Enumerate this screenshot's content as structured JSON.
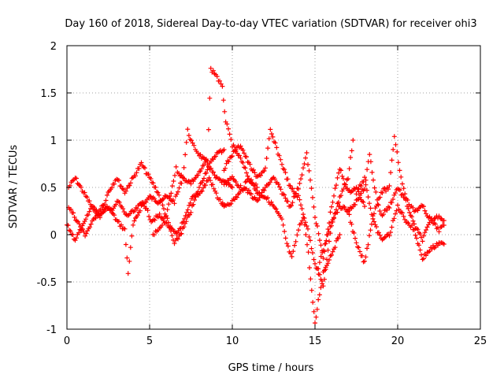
{
  "chart_data": {
    "type": "scatter",
    "title": "Day 160 of 2018, Sidereal Day-to-day VTEC variation (SDTVAR) for receiver ohi3",
    "xlabel": "GPS time / hours",
    "ylabel": "SDTVAR / TECUs",
    "xlim": [
      0,
      25
    ],
    "ylim": [
      -1,
      2
    ],
    "xticks": [
      0,
      5,
      10,
      15,
      20,
      25
    ],
    "xtick_labels": [
      "0",
      "5",
      "10",
      "15",
      "20",
      "25"
    ],
    "yticks": [
      -1,
      -0.5,
      0,
      0.5,
      1,
      1.5,
      2
    ],
    "ytick_labels": [
      "-1",
      "-0.5",
      "0",
      "0.5",
      "1",
      "1.5",
      "2"
    ],
    "grid": true,
    "marker": "+",
    "series": [
      {
        "name": "SDTVAR",
        "color": "#ff0000",
        "tracks": [
          {
            "x": [
              0.1,
              0.5,
              1.0,
              1.5,
              2.0,
              2.5,
              3.0,
              3.5,
              3.7,
              4.0,
              4.5,
              5.0,
              5.5,
              6.0,
              6.5,
              7.0,
              7.3,
              7.6,
              8.0,
              8.5,
              9.0,
              9.5,
              10.0
            ],
            "y": [
              0.5,
              0.6,
              0.45,
              0.3,
              0.2,
              0.3,
              0.15,
              0.05,
              -0.4,
              0.1,
              0.3,
              0.4,
              0.35,
              0.4,
              0.35,
              0.6,
              1.1,
              0.95,
              0.85,
              0.75,
              0.6,
              0.55,
              0.5
            ]
          },
          {
            "x": [
              0.0,
              0.5,
              1.0,
              1.5,
              2.0,
              2.5,
              3.0,
              3.5,
              4.0,
              4.5,
              5.0,
              5.5,
              6.0,
              6.5,
              7.0,
              7.5,
              8.0,
              8.5,
              9.0,
              9.5
            ],
            "y": [
              0.1,
              -0.05,
              0.1,
              0.3,
              0.2,
              0.45,
              0.6,
              0.45,
              0.6,
              0.75,
              0.6,
              0.45,
              0.2,
              -0.1,
              0.05,
              0.25,
              0.5,
              0.7,
              0.85,
              0.9
            ]
          },
          {
            "x": [
              0.1,
              0.6,
              1.1,
              1.6,
              2.1,
              2.6,
              3.1,
              3.6,
              4.1,
              4.6,
              5.1,
              5.6,
              6.1,
              6.6,
              7.1,
              7.6,
              8.1,
              8.6,
              9.1,
              9.5
            ],
            "y": [
              0.3,
              0.15,
              0.0,
              0.15,
              0.3,
              0.25,
              0.35,
              0.2,
              0.25,
              0.35,
              0.15,
              0.2,
              0.1,
              0.0,
              0.15,
              0.4,
              0.45,
              0.6,
              0.4,
              0.3
            ]
          },
          {
            "x": [
              5.2,
              5.6,
              6.0,
              6.3,
              6.6,
              7.0,
              7.5,
              8.0,
              8.5,
              8.7,
              9.0,
              9.4,
              9.6,
              10.0,
              10.5,
              11.0,
              11.5
            ],
            "y": [
              0.0,
              0.05,
              0.2,
              0.45,
              0.7,
              0.6,
              0.55,
              0.65,
              0.8,
              1.75,
              1.7,
              1.55,
              1.2,
              0.95,
              0.8,
              0.6,
              0.5
            ]
          },
          {
            "x": [
              9.4,
              10.0,
              10.5,
              11.0,
              11.5,
              12.0,
              12.5,
              13.0,
              13.3,
              13.6,
              14.0,
              14.3,
              14.6,
              14.8,
              15.0,
              15.2,
              15.5,
              16.0,
              16.5
            ],
            "y": [
              0.3,
              0.35,
              0.45,
              0.6,
              0.45,
              0.4,
              0.3,
              0.15,
              -0.1,
              -0.25,
              0.05,
              0.2,
              -0.2,
              -0.6,
              -0.95,
              -0.7,
              -0.4,
              -0.2,
              0.0
            ]
          },
          {
            "x": [
              9.5,
              10.0,
              10.5,
              11.0,
              11.5,
              12.0,
              12.3,
              12.6,
              13.0,
              13.5,
              14.0,
              14.5,
              15.0,
              15.5,
              16.0,
              16.5,
              17.0,
              17.3
            ],
            "y": [
              0.7,
              0.85,
              0.95,
              0.75,
              0.6,
              0.7,
              1.1,
              0.95,
              0.75,
              0.5,
              0.4,
              0.1,
              -0.3,
              -0.55,
              0.1,
              0.4,
              0.6,
              1.0
            ]
          },
          {
            "x": [
              9.5,
              10.0,
              10.5,
              11.0,
              11.5,
              12.0,
              12.5,
              13.0,
              13.5,
              14.0,
              14.5,
              15.0,
              15.5,
              16.0,
              16.5,
              17.0,
              17.5,
              18.0
            ],
            "y": [
              0.55,
              0.6,
              0.5,
              0.45,
              0.35,
              0.5,
              0.6,
              0.45,
              0.3,
              0.5,
              0.85,
              0.2,
              -0.25,
              0.3,
              0.7,
              0.45,
              0.5,
              0.3
            ]
          },
          {
            "x": [
              15.2,
              15.6,
              16.0,
              16.5,
              17.0,
              17.5,
              18.0,
              18.5,
              19.0,
              19.5,
              19.8,
              20.2,
              20.6,
              21.0,
              21.5,
              22.0,
              22.5,
              22.8
            ],
            "y": [
              -0.35,
              -0.1,
              0.15,
              0.3,
              0.25,
              -0.1,
              -0.3,
              0.2,
              0.45,
              0.5,
              1.05,
              0.6,
              0.35,
              0.25,
              0.3,
              0.15,
              0.05,
              0.1
            ]
          },
          {
            "x": [
              17.0,
              17.5,
              18.0,
              18.3,
              18.6,
              19.0,
              19.5,
              20.0,
              20.5,
              21.0,
              21.5,
              22.0,
              22.5,
              22.8
            ],
            "y": [
              0.25,
              0.35,
              0.5,
              0.85,
              0.5,
              0.2,
              0.3,
              0.5,
              0.35,
              0.1,
              -0.05,
              0.15,
              0.2,
              0.15
            ]
          },
          {
            "x": [
              17.5,
              18.0,
              18.5,
              19.0,
              19.5,
              20.0,
              20.5,
              21.0,
              21.5,
              22.0,
              22.5,
              22.8
            ],
            "y": [
              0.45,
              0.6,
              0.15,
              -0.05,
              0.0,
              0.3,
              0.15,
              0.05,
              -0.25,
              -0.15,
              -0.1,
              -0.1
            ]
          }
        ]
      }
    ]
  }
}
